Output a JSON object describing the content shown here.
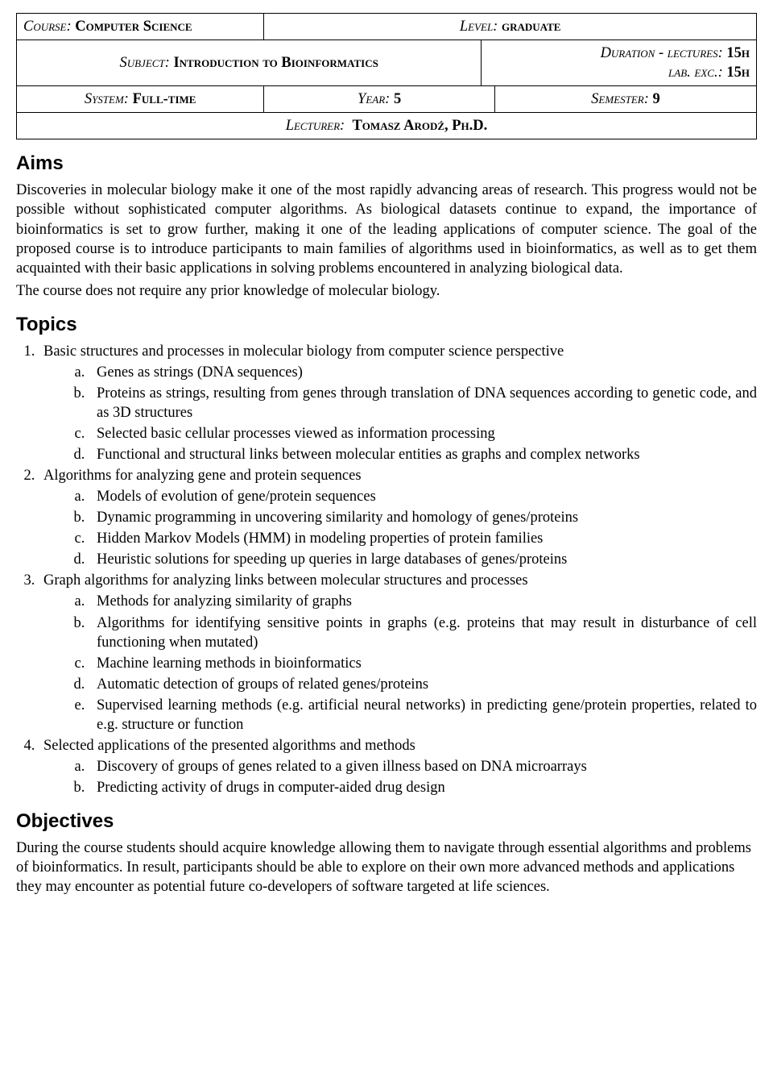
{
  "header": {
    "course_label": "Course:",
    "course_value": "Computer Science",
    "level_label": "Level:",
    "level_value": "graduate",
    "subject_label": "Subject:",
    "subject_value": "Introduction to Bioinformatics",
    "duration_lect_label": "Duration - lectures:",
    "duration_lect_value": "15h",
    "duration_lab_label": "lab. exc.:",
    "duration_lab_value": "15h",
    "system_label": "System:",
    "system_value": "Full-time",
    "year_label": "Year:",
    "year_value": "5",
    "semester_label": "Semester:",
    "semester_value": "9",
    "lecturer_label": "Lecturer:",
    "lecturer_value": "Tomasz Arodź, Ph.D."
  },
  "aims": {
    "heading": "Aims",
    "p1": "Discoveries in molecular biology make it one of the most rapidly advancing areas of research. This progress would not be possible without sophisticated computer algorithms. As biological datasets continue to expand, the importance of bioinformatics is set to grow further, making it one of the leading applications of computer science. The goal of the proposed course is to introduce participants to main families of algorithms used in bioinformatics, as well as to get them acquainted with their basic applications in solving problems encountered in analyzing biological data.",
    "p2": "The course does not require any prior knowledge of molecular biology."
  },
  "topics": {
    "heading": "Topics",
    "items": [
      {
        "title": "Basic structures and processes in molecular biology from computer science perspective",
        "subs": [
          "Genes as strings (DNA sequences)",
          "Proteins as strings, resulting from genes through translation of DNA sequences according to genetic code, and as 3D structures",
          "Selected basic cellular processes viewed as information processing",
          "Functional and structural links between molecular entities as graphs and complex networks"
        ]
      },
      {
        "title": "Algorithms for analyzing gene and protein sequences",
        "subs": [
          "Models of evolution of gene/protein sequences",
          "Dynamic programming in uncovering similarity and homology of genes/proteins",
          "Hidden Markov Models (HMM) in modeling properties of protein families",
          "Heuristic solutions for speeding up queries in large databases of genes/proteins"
        ]
      },
      {
        "title": "Graph algorithms for analyzing links between molecular structures and processes",
        "subs": [
          "Methods for analyzing similarity of graphs",
          "Algorithms for identifying sensitive points in graphs (e.g. proteins that may result in disturbance of cell functioning when mutated)",
          "Machine learning methods in bioinformatics",
          "Automatic detection of groups of related genes/proteins",
          "Supervised learning methods (e.g. artificial neural networks) in predicting gene/protein properties, related to e.g. structure or function"
        ]
      },
      {
        "title": "Selected applications of the presented algorithms and methods",
        "subs": [
          "Discovery of groups of genes related to a given illness based on DNA microarrays",
          "Predicting activity of drugs in computer-aided drug design"
        ]
      }
    ]
  },
  "objectives": {
    "heading": "Objectives",
    "p1": "During the course students should acquire knowledge allowing them to navigate through essential algorithms and problems of bioinformatics. In result, participants should be able to explore on their own more advanced methods and applications they may encounter as potential future co-developers of software targeted at life sciences."
  }
}
